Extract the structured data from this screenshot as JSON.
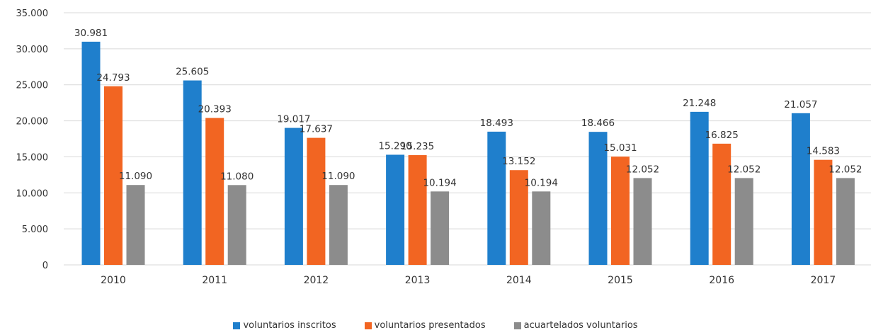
{
  "chart_data": {
    "type": "bar",
    "categories": [
      "2010",
      "2011",
      "2012",
      "2013",
      "2014",
      "2015",
      "2016",
      "2017"
    ],
    "series": [
      {
        "name": "voluntarios inscritos",
        "color": "#1f7fcc",
        "values": [
          30981,
          25605,
          19017,
          15290,
          18493,
          18466,
          21248,
          21057
        ],
        "labels": [
          "30.981",
          "25.605",
          "19.017",
          "15.290",
          "18.493",
          "18.466",
          "21.248",
          "21.057"
        ]
      },
      {
        "name": "voluntarios presentados",
        "color": "#f26522",
        "values": [
          24793,
          20393,
          17637,
          15235,
          13152,
          15031,
          16825,
          14583
        ],
        "labels": [
          "24.793",
          "20.393",
          "17.637",
          "15.235",
          "13.152",
          "15.031",
          "16.825",
          "14.583"
        ]
      },
      {
        "name": "acuartelados voluntarios",
        "color": "#8c8c8c",
        "values": [
          11090,
          11080,
          11090,
          10194,
          10194,
          12052,
          12052,
          12052
        ],
        "labels": [
          "11.090",
          "11.080",
          "11.090",
          "10.194",
          "10.194",
          "12.052",
          "12.052",
          "12.052"
        ]
      }
    ],
    "yticks": [
      0,
      5000,
      10000,
      15000,
      20000,
      25000,
      30000,
      35000
    ],
    "ytick_labels": [
      "0",
      "5.000",
      "10.000",
      "15.000",
      "20.000",
      "25.000",
      "30.000",
      "35.000"
    ],
    "ylim": [
      0,
      35000
    ],
    "grid": true,
    "legend_position": "bottom"
  }
}
